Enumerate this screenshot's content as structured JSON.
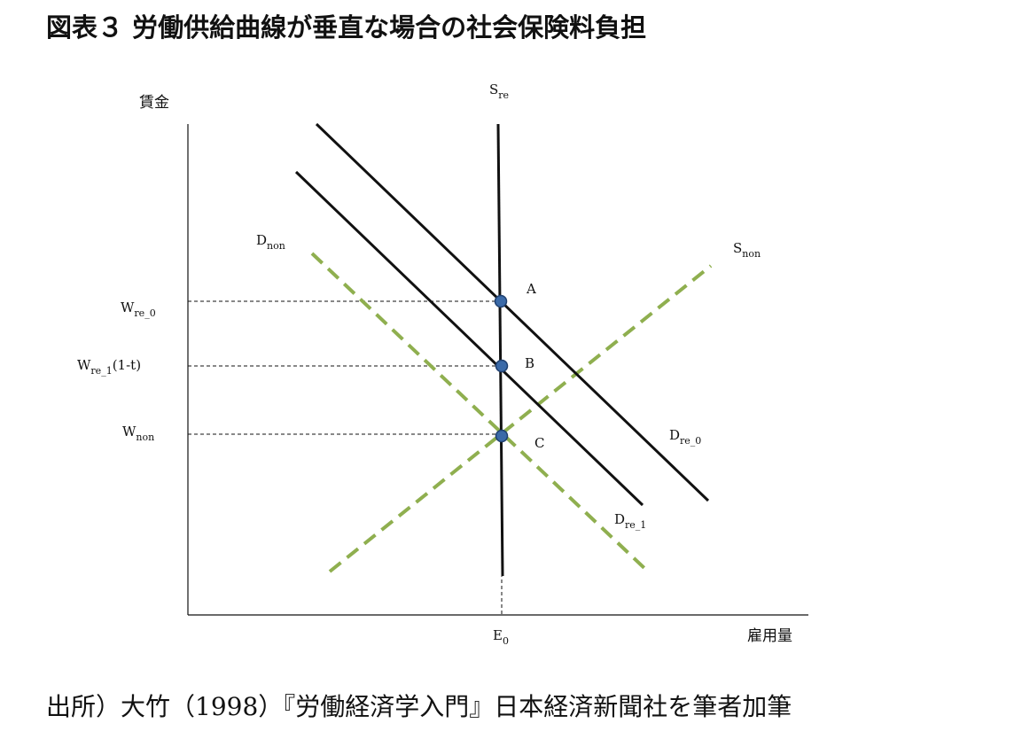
{
  "title": "図表３ 労働供給曲線が垂直な場合の社会保険料負担",
  "source": "出所）大竹（1998）『労働経済学入門』日本経済新聞社を筆者加筆",
  "axes": {
    "y_label": "賃金",
    "x_label": "雇用量"
  },
  "curves": {
    "s_re": {
      "base": "S",
      "sub": "re"
    },
    "s_non": {
      "base": "S",
      "sub": "non"
    },
    "d_non": {
      "base": "D",
      "sub": "non"
    },
    "d_re_0": {
      "base": "D",
      "sub": "re_0"
    },
    "d_re_1": {
      "base": "D",
      "sub": "re_1"
    }
  },
  "wage_levels": {
    "w_re_0": {
      "base": "W",
      "sub": "re_0",
      "suffix": ""
    },
    "w_re_1": {
      "base": "W",
      "sub": "re_1",
      "suffix": "(1-t)"
    },
    "w_non": {
      "base": "W",
      "sub": "non",
      "suffix": ""
    }
  },
  "quantity_levels": {
    "e0": {
      "base": "E",
      "sub": "0"
    }
  },
  "points": {
    "a": "A",
    "b": "B",
    "c": "C"
  },
  "colors": {
    "solid_line": "#111111",
    "dashed_curve": "#8faf4f",
    "point_fill": "#3b6aa8",
    "point_stroke": "#1f3f6e"
  }
}
